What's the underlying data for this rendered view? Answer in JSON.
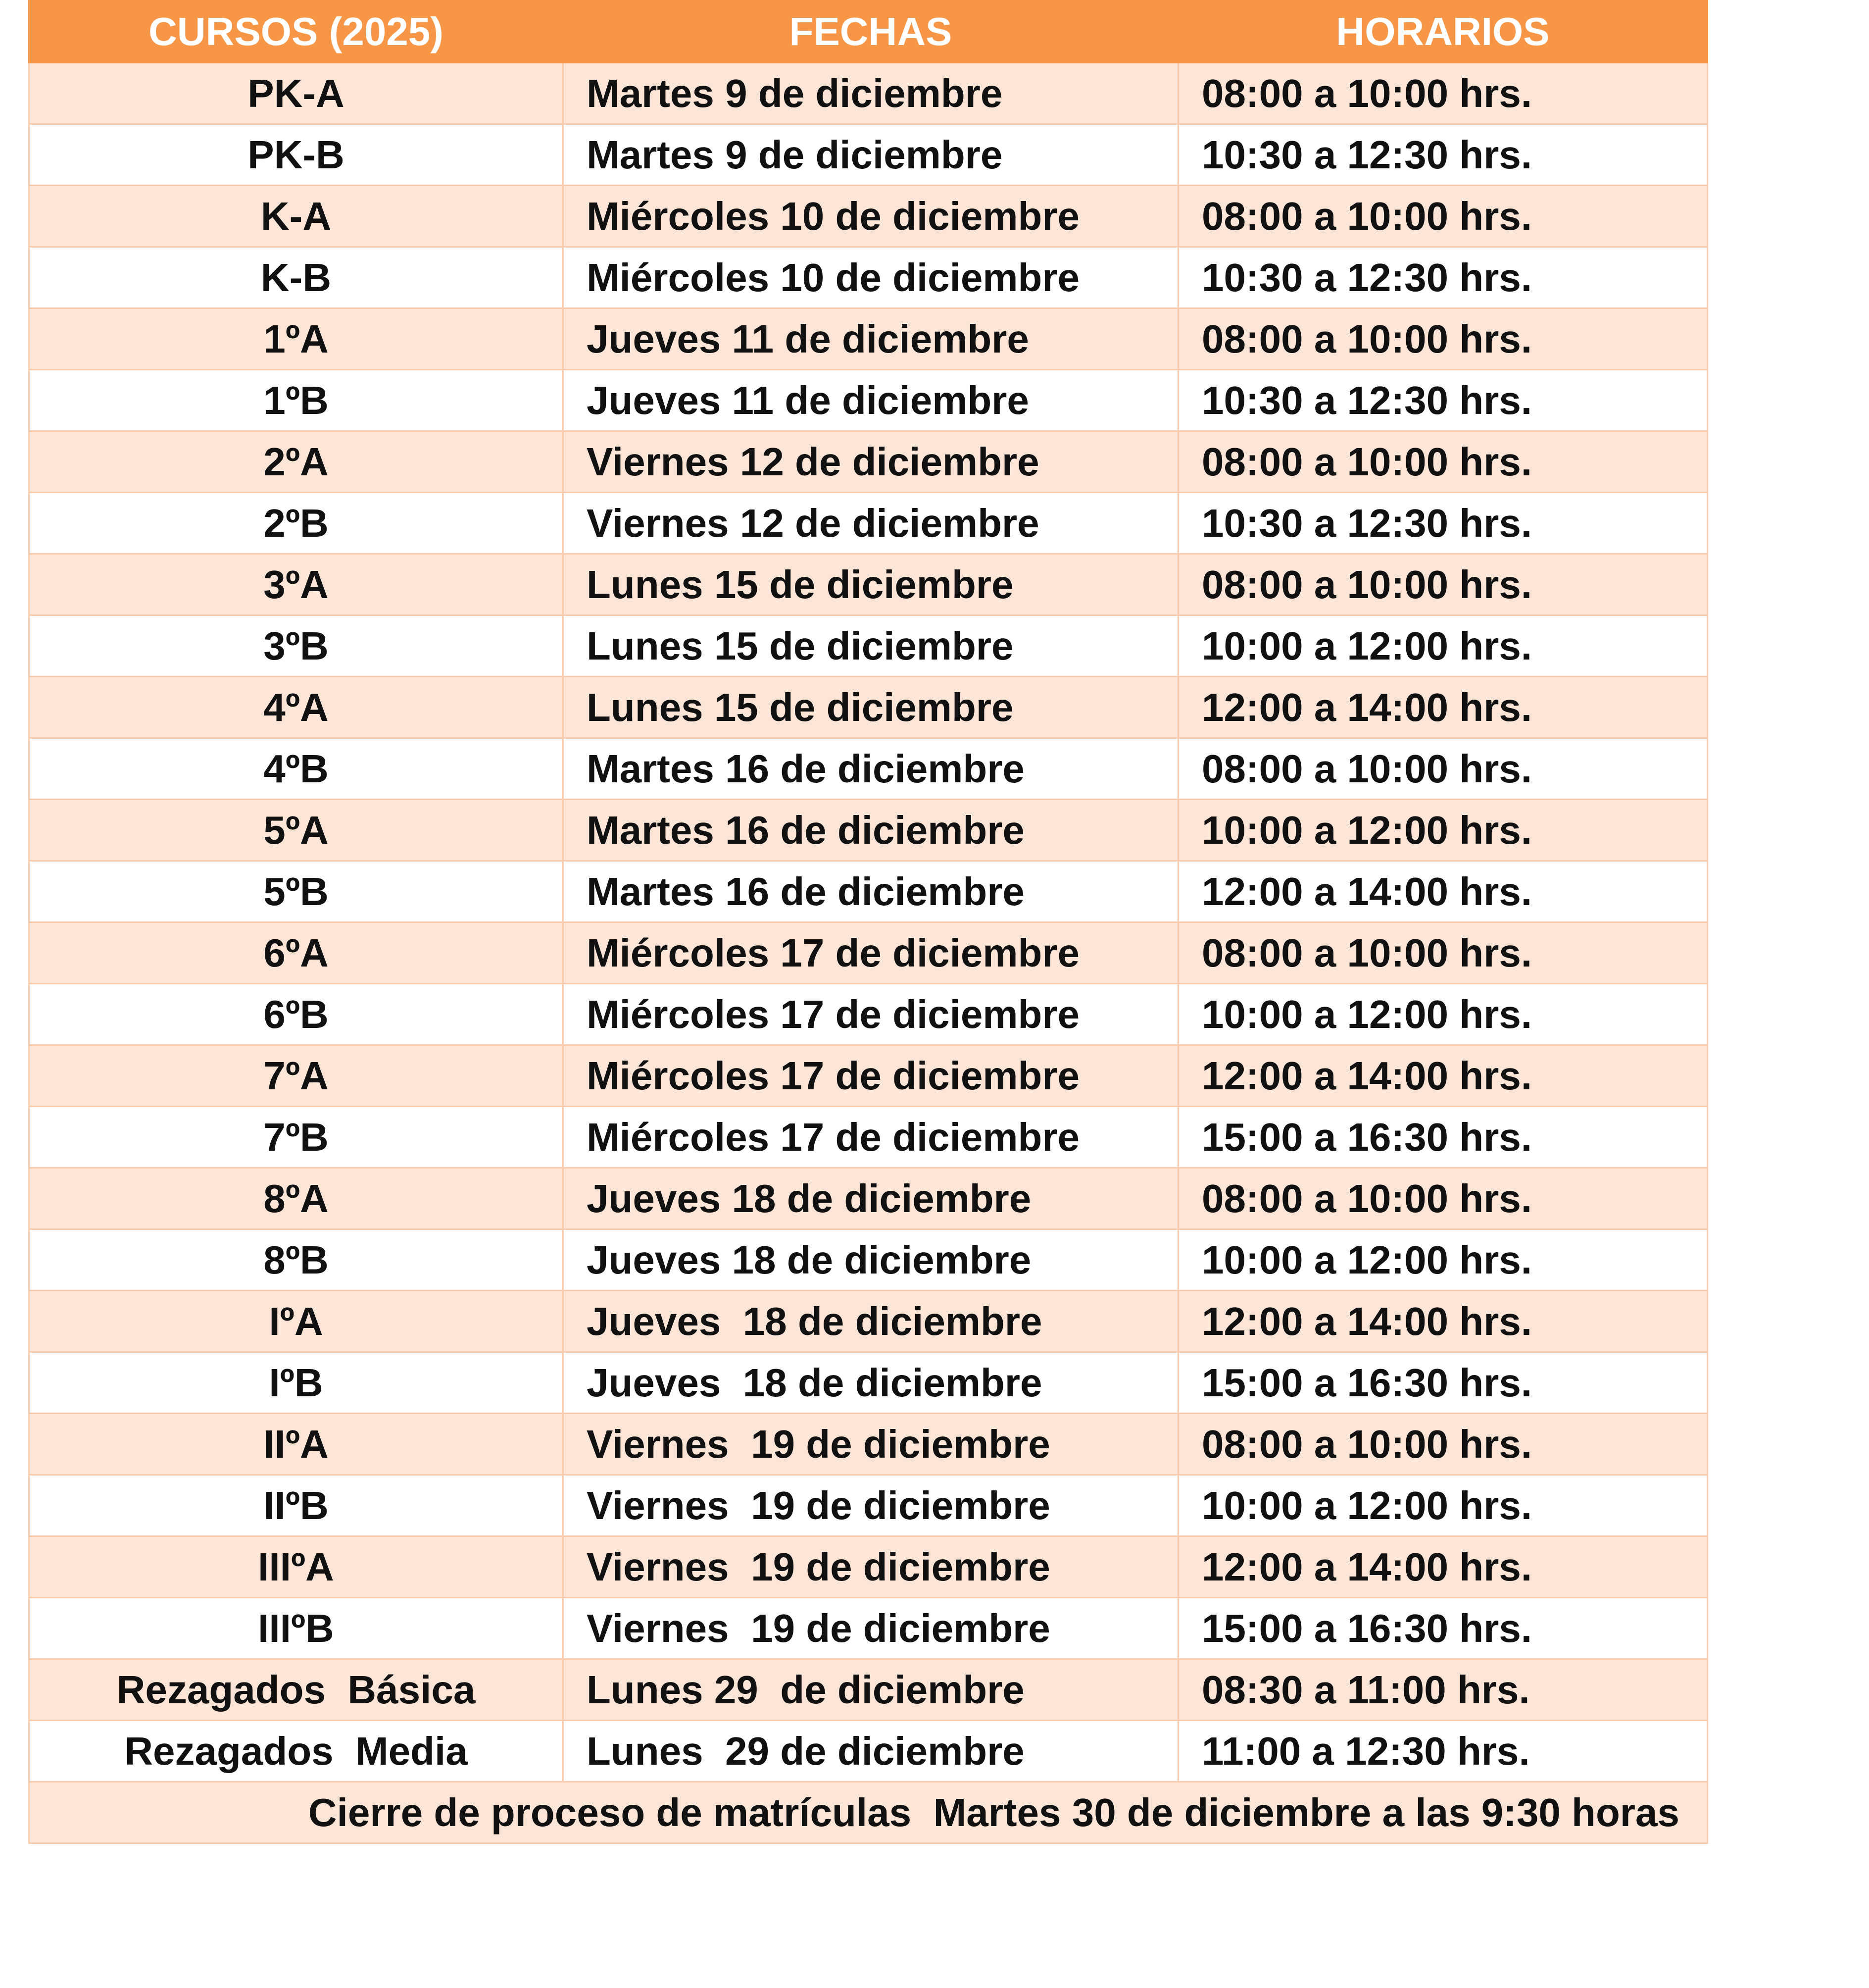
{
  "table": {
    "header": [
      "CURSOS (2025)",
      "FECHAS",
      "HORARIOS"
    ],
    "rows": [
      [
        "PK-A",
        "Martes 9 de diciembre",
        "08:00 a 10:00 hrs."
      ],
      [
        "PK-B",
        "Martes 9 de diciembre",
        "10:30 a 12:30 hrs."
      ],
      [
        "K-A",
        "Miércoles 10 de diciembre",
        "08:00 a 10:00 hrs."
      ],
      [
        "K-B",
        "Miércoles 10 de diciembre",
        "10:30 a 12:30 hrs."
      ],
      [
        "1ºA",
        "Jueves 11 de diciembre",
        "08:00 a 10:00 hrs."
      ],
      [
        "1ºB",
        "Jueves 11 de diciembre",
        "10:30 a 12:30 hrs."
      ],
      [
        "2ºA",
        "Viernes 12 de diciembre",
        "08:00 a 10:00 hrs."
      ],
      [
        "2ºB",
        "Viernes 12 de diciembre",
        "10:30 a 12:30 hrs."
      ],
      [
        "3ºA",
        "Lunes 15 de diciembre",
        "08:00 a 10:00 hrs."
      ],
      [
        "3ºB",
        "Lunes 15 de diciembre",
        "10:00 a 12:00 hrs."
      ],
      [
        "4ºA",
        "Lunes 15 de diciembre",
        "12:00 a 14:00 hrs."
      ],
      [
        "4ºB",
        "Martes 16 de diciembre",
        "08:00 a 10:00 hrs."
      ],
      [
        "5ºA",
        "Martes 16 de diciembre",
        "10:00 a 12:00 hrs."
      ],
      [
        "5ºB",
        "Martes 16 de diciembre",
        "12:00 a 14:00 hrs."
      ],
      [
        "6ºA",
        "Miércoles 17 de diciembre",
        "08:00 a 10:00 hrs."
      ],
      [
        "6ºB",
        "Miércoles 17 de diciembre",
        "10:00 a 12:00 hrs."
      ],
      [
        "7ºA",
        "Miércoles 17 de diciembre",
        "12:00 a 14:00 hrs."
      ],
      [
        "7ºB",
        "Miércoles 17 de diciembre",
        "15:00 a 16:30 hrs."
      ],
      [
        "8ºA",
        "Jueves 18 de diciembre",
        "08:00 a 10:00 hrs."
      ],
      [
        "8ºB",
        "Jueves 18 de diciembre",
        "10:00 a 12:00 hrs."
      ],
      [
        "IºA",
        "Jueves  18 de diciembre",
        "12:00 a 14:00 hrs."
      ],
      [
        "IºB",
        "Jueves  18 de diciembre",
        "15:00 a 16:30 hrs."
      ],
      [
        "IIºA",
        "Viernes  19 de diciembre",
        "08:00 a 10:00 hrs."
      ],
      [
        "IIºB",
        "Viernes  19 de diciembre",
        "10:00 a 12:00 hrs."
      ],
      [
        "IIIºA",
        "Viernes  19 de diciembre",
        "12:00 a 14:00 hrs."
      ],
      [
        "IIIºB",
        "Viernes  19 de diciembre",
        "15:00 a 16:30 hrs."
      ],
      [
        "Rezagados  Básica",
        "Lunes 29  de diciembre",
        "08:30 a 11:00 hrs."
      ],
      [
        "Rezagados  Media",
        "Lunes  29 de diciembre",
        "11:00 a 12:30 hrs."
      ]
    ],
    "footer": "Cierre de proceso de matrículas  Martes 30 de diciembre a las 9:30 horas"
  }
}
